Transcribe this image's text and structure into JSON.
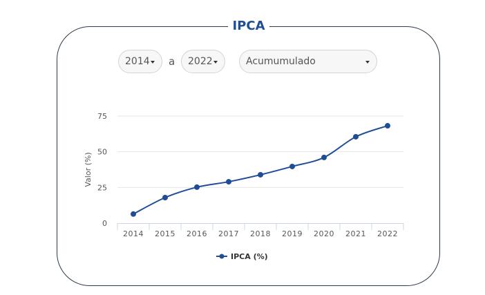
{
  "title": "IPCA",
  "controls": {
    "from_year": "2014",
    "separator": "a",
    "to_year": "2022",
    "mode": "Acumumulado"
  },
  "colors": {
    "series": "#1f4e96",
    "title": "#1f4e96"
  },
  "chart_data": {
    "type": "line",
    "categories": [
      "2014",
      "2015",
      "2016",
      "2017",
      "2018",
      "2019",
      "2020",
      "2021",
      "2022"
    ],
    "series": [
      {
        "name": "IPCA (%)",
        "values": [
          6.4,
          17.9,
          25.2,
          29.0,
          33.9,
          39.7,
          46.0,
          60.5,
          68.2
        ]
      }
    ],
    "ylabel": "Valor (%)",
    "xlabel": "",
    "yticks": [
      0,
      25,
      50,
      75
    ],
    "ylim": [
      0,
      75
    ],
    "grid": true,
    "legend": "bottom-center"
  }
}
